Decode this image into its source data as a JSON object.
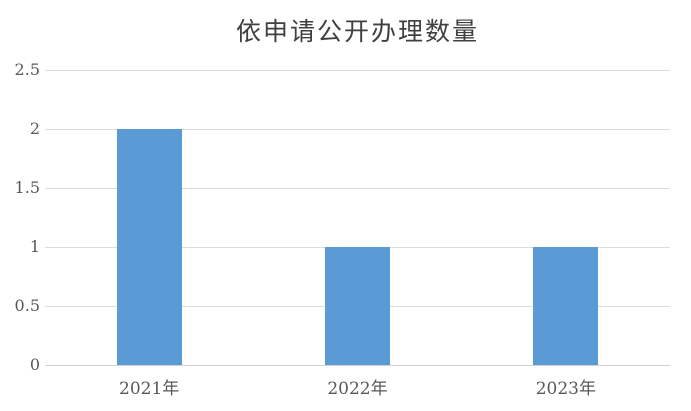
{
  "chart_data": {
    "type": "bar",
    "title": "依申请公开办理数量",
    "categories": [
      "2021年",
      "2022年",
      "2023年"
    ],
    "values": [
      2,
      1,
      1
    ],
    "series": [
      {
        "name": "依申请公开办理数量",
        "values": [
          2,
          1,
          1
        ]
      }
    ],
    "xlabel": "",
    "ylabel": "",
    "ylim": [
      0,
      2.5
    ],
    "ytick_step": 0.5,
    "ytick_labels": [
      "0",
      "0.5",
      "1",
      "1.5",
      "2",
      "2.5"
    ],
    "grid": true,
    "legend_visible": false,
    "colors": {
      "bar": "#5b9bd5",
      "gridline": "#dcdcdc",
      "axis_line": "#d0d0d0",
      "title_text": "#404040",
      "tick_text": "#595959",
      "background": "#ffffff"
    }
  }
}
